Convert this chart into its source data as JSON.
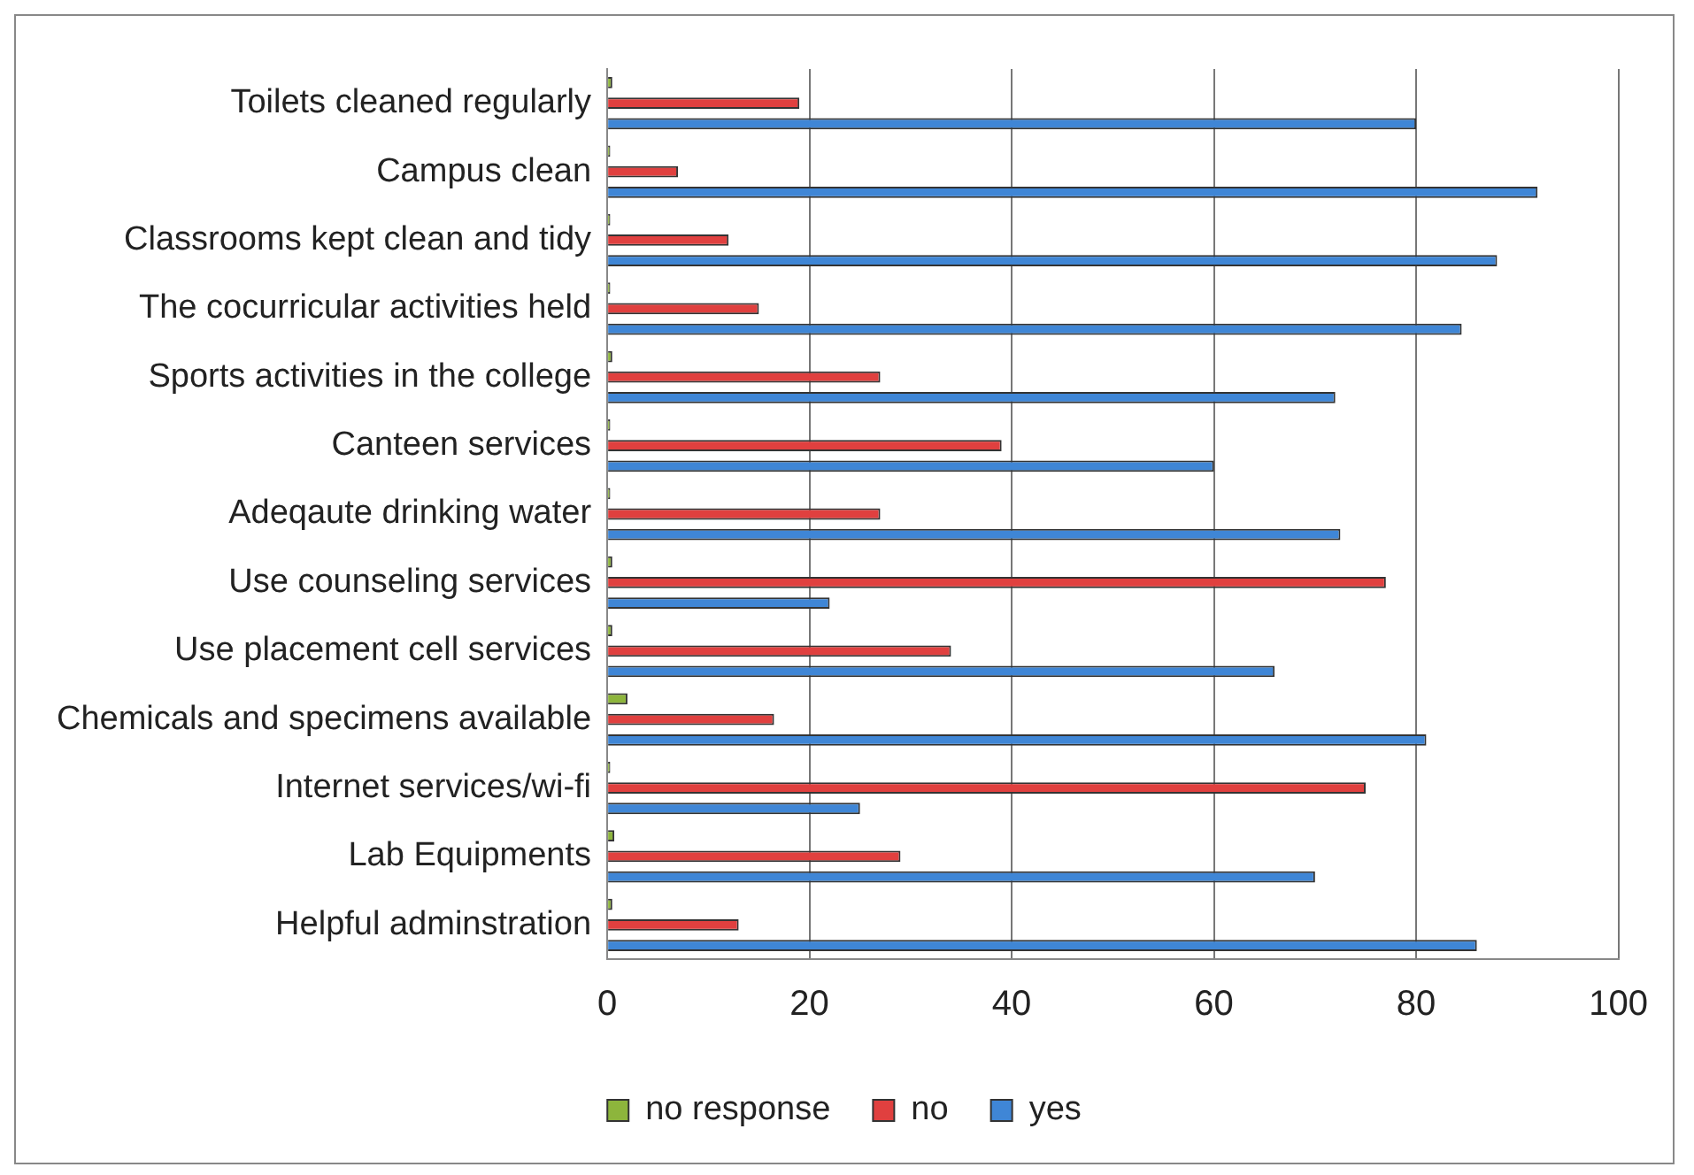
{
  "chart_data": {
    "type": "bar",
    "orientation": "horizontal",
    "categories": [
      "Toilets cleaned regularly",
      "Campus clean",
      "Classrooms kept clean and tidy",
      "The cocurricular activities held",
      "Sports activities in the college",
      "Canteen services",
      "Adeqaute drinking water",
      "Use counseling services",
      "Use placement cell services",
      "Chemicals and specimens available",
      "Internet services/wi-fi",
      "Lab Equipments",
      "Helpful adminstration"
    ],
    "series": [
      {
        "name": "no response",
        "color": "#8db53c",
        "values": [
          0.5,
          0.3,
          0.3,
          0.3,
          0.5,
          0.3,
          0.3,
          0.5,
          0.5,
          2,
          0.3,
          0.7,
          0.5
        ]
      },
      {
        "name": "no",
        "color": "#e0403f",
        "values": [
          19,
          7,
          12,
          15,
          27,
          39,
          27,
          77,
          34,
          16.5,
          75,
          29,
          13
        ]
      },
      {
        "name": "yes",
        "color": "#3f86d6",
        "values": [
          80,
          92,
          88,
          84.5,
          72,
          60,
          72.5,
          22,
          66,
          81,
          25,
          70,
          86
        ]
      }
    ],
    "xlim": [
      0,
      100
    ],
    "xticks": [
      0,
      20,
      40,
      60,
      80,
      100
    ],
    "grid": "x",
    "legend": "bottom"
  }
}
